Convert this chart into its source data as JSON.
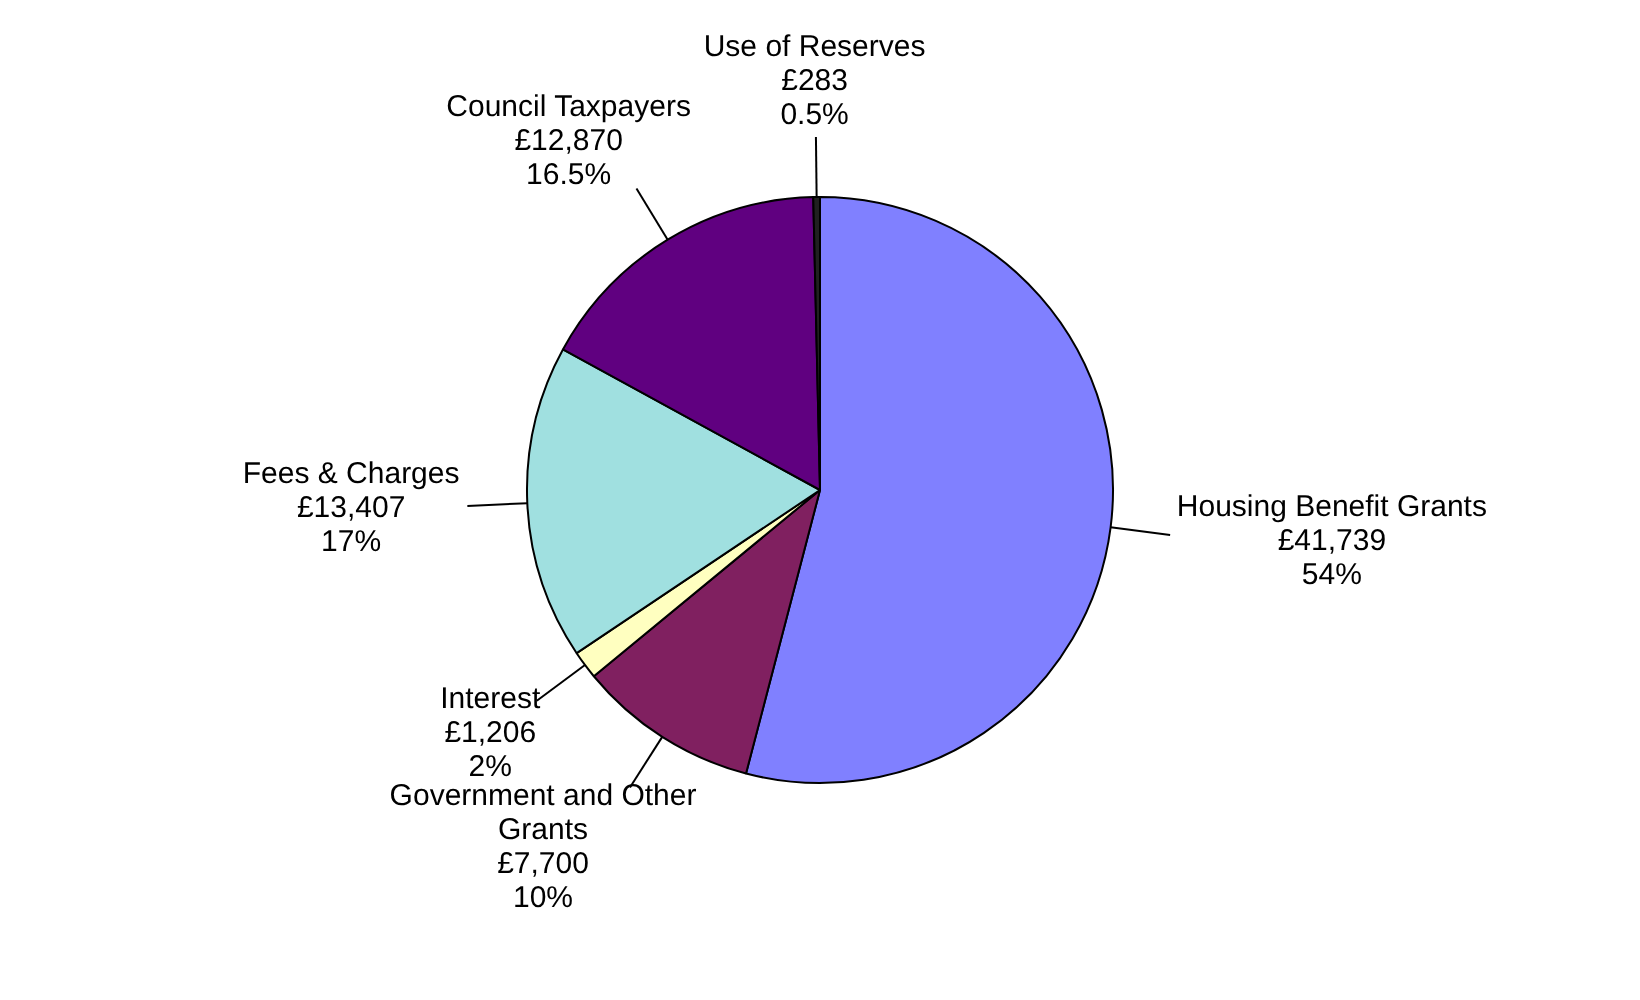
{
  "chart_data": {
    "type": "pie",
    "categories": [
      "Housing Benefit Grants",
      "Government and Other Grants",
      "Interest",
      "Fees & Charges",
      "Council Taxpayers",
      "Use of Reserves"
    ],
    "values": [
      41739,
      7700,
      1206,
      13407,
      12870,
      283
    ],
    "colors": [
      "#8080ff",
      "#802060",
      "#ffffc0",
      "#a0e0e0",
      "#600080",
      "#202020"
    ],
    "value_labels": [
      "£41,739\n54%",
      "£7,700\n10%",
      "£1,206\n2%",
      "£13,407\n17%",
      "£12,870\n16.5%",
      "£283\n0.5%"
    ],
    "legend": false
  }
}
